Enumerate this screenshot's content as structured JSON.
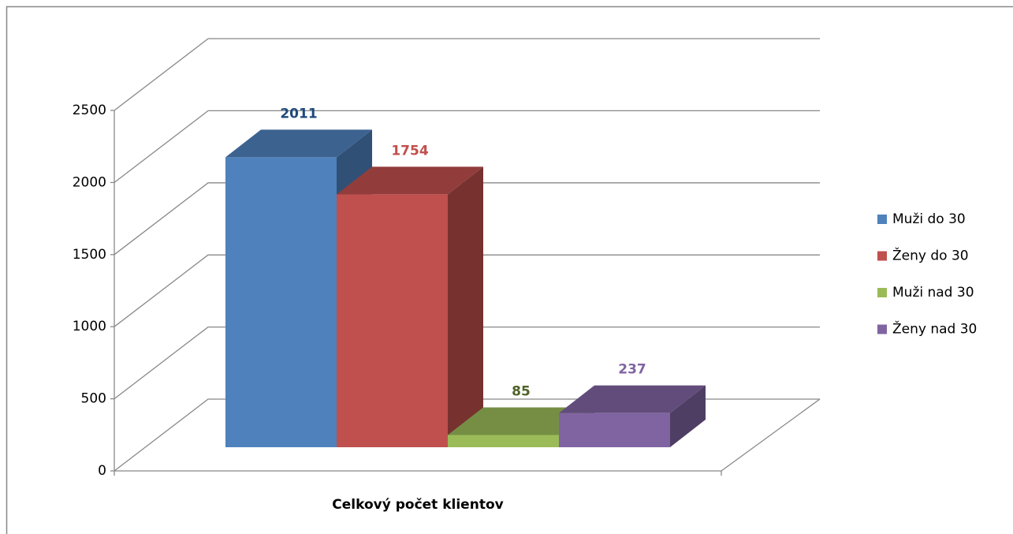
{
  "chart_data": {
    "type": "bar3d",
    "categories": [
      "Celkový počet klientov"
    ],
    "series": [
      {
        "name": "Muži do 30",
        "color": "#4f81bd",
        "label_color": "#1f497d",
        "values": [
          2011
        ]
      },
      {
        "name": "Ženy do 30",
        "color": "#c0504d",
        "label_color": "#c0504d",
        "values": [
          1754
        ]
      },
      {
        "name": "Muži nad 30",
        "color": "#9bbb59",
        "label_color": "#4f6228",
        "values": [
          85
        ]
      },
      {
        "name": "Ženy nad 30",
        "color": "#8064a2",
        "label_color": "#8064a2",
        "values": [
          237
        ]
      }
    ],
    "ylim": [
      0,
      2500
    ],
    "yticks": [
      0,
      500,
      1000,
      1500,
      2000,
      2500
    ],
    "grid": true,
    "legend": "right"
  }
}
